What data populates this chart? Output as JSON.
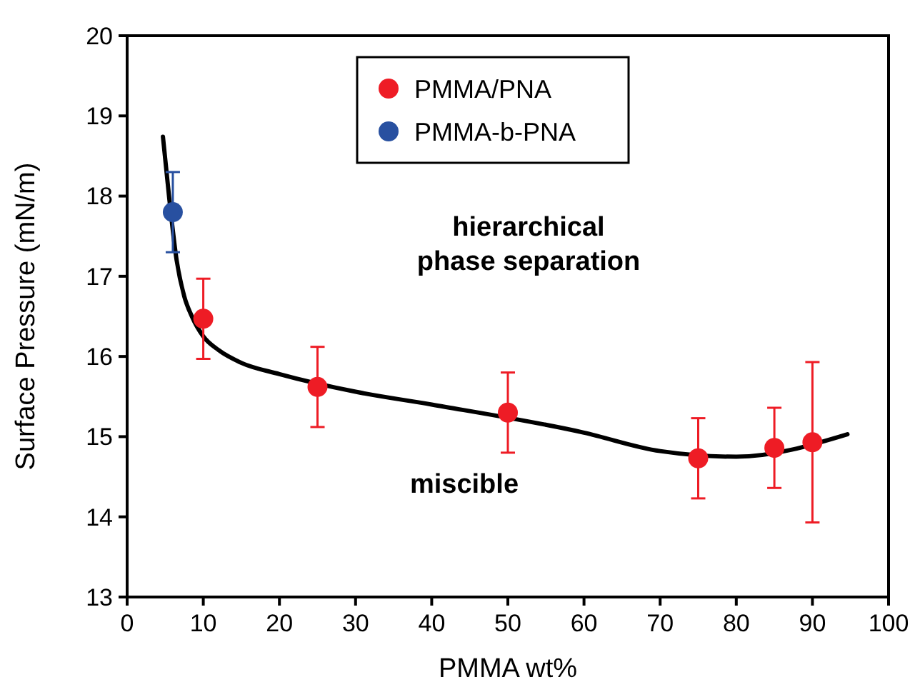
{
  "chart_data": {
    "type": "scatter",
    "xlabel": "PMMA wt%",
    "ylabel": "Surface Pressure (mN/m)",
    "xlim": [
      0,
      100
    ],
    "xticks": [
      0,
      10,
      20,
      30,
      40,
      50,
      60,
      70,
      80,
      90,
      100
    ],
    "ylim": [
      13,
      20
    ],
    "yticks": [
      13,
      14,
      15,
      16,
      17,
      18,
      19,
      20
    ],
    "grid": false,
    "legend": "top",
    "marker": "circle",
    "series": [
      {
        "name": "PMMA/PNA",
        "color": "#ee1c25",
        "x": [
          10,
          25,
          50,
          75,
          85,
          90
        ],
        "values": [
          16.47,
          15.62,
          15.3,
          14.73,
          14.86,
          14.93
        ],
        "errors": [
          0.5,
          0.5,
          0.5,
          0.5,
          0.5,
          1.0
        ]
      },
      {
        "name": "PMMA-b-PNA",
        "color": "#2850a0",
        "x": [
          6
        ],
        "values": [
          17.8
        ],
        "errors": [
          0.5
        ]
      },
      {
        "type": "line",
        "color": "#000000",
        "marker": "none",
        "line_style": "solid",
        "x": [
          4.7,
          5.5,
          6.5,
          7.5,
          8.5,
          10,
          12,
          15,
          20,
          30,
          40,
          60,
          70,
          80,
          94.6
        ],
        "values": [
          18.74,
          18.0,
          17.2,
          16.75,
          16.5,
          16.25,
          16.08,
          15.92,
          15.78,
          15.56,
          15.4,
          15.05,
          14.82,
          14.75,
          15.03
        ]
      }
    ],
    "annotations": [
      "hierarchical\nphase separation",
      "miscible"
    ]
  }
}
